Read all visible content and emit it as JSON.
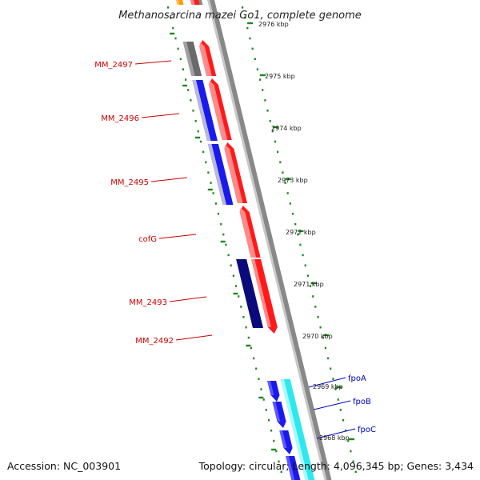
{
  "title": "Methanosarcina mazei Go1, complete genome",
  "footer": {
    "accession": "Accession: NC_003901",
    "summary": "Topology: circular; Length: 4,096,345 bp; Genes: 3,434"
  },
  "colors": {
    "forward_gene": "#ff1a1a",
    "reverse_gene_blue": "#1a1aee",
    "reverse_gene_navy": "#0a0a7a",
    "reverse_gene_gray": "#6a6a6a",
    "light_gene": "#2fe8ee",
    "backbone": "#888888",
    "tick": "#1a8a1a",
    "label_red": "#cc0000",
    "label_blue": "#0000cc"
  },
  "scale_labels": [
    "2976 kbp",
    "2975 kbp",
    "2974 kbp",
    "2973 kbp",
    "2972 kbp",
    "2971 kbp",
    "2970 kbp",
    "2969 kbp",
    "2968 kbp"
  ],
  "gene_labels": [
    {
      "name": "MM_2497",
      "color": "label_red"
    },
    {
      "name": "MM_2496",
      "color": "label_red"
    },
    {
      "name": "MM_2495",
      "color": "label_red"
    },
    {
      "name": "cofG",
      "color": "label_red"
    },
    {
      "name": "MM_2493",
      "color": "label_red"
    },
    {
      "name": "MM_2492",
      "color": "label_red"
    },
    {
      "name": "fpoA",
      "color": "label_blue"
    },
    {
      "name": "fpoB",
      "color": "label_blue"
    },
    {
      "name": "fpoC",
      "color": "label_blue"
    }
  ]
}
